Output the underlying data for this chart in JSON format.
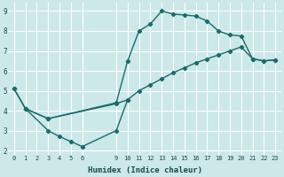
{
  "xlabel": "Humidex (Indice chaleur)",
  "bg_color": "#cce8e8",
  "grid_color": "#ffffff",
  "line_color": "#1a6b6b",
  "marker": "D",
  "markersize": 2.2,
  "linewidth": 1.0,
  "xlim": [
    -0.5,
    23.5
  ],
  "ylim": [
    1.8,
    9.4
  ],
  "xticks": [
    0,
    1,
    2,
    3,
    4,
    5,
    6,
    9,
    10,
    11,
    12,
    13,
    14,
    15,
    16,
    17,
    18,
    19,
    20,
    21,
    22,
    23
  ],
  "yticks": [
    2,
    3,
    4,
    5,
    6,
    7,
    8,
    9
  ],
  "series": [
    {
      "x": [
        0,
        1,
        3,
        9,
        10,
        11,
        12,
        13,
        14,
        15,
        16,
        17,
        18,
        19,
        20,
        21,
        22,
        23
      ],
      "y": [
        5.1,
        4.1,
        3.6,
        4.4,
        6.5,
        8.0,
        8.35,
        9.0,
        8.85,
        8.8,
        8.75,
        8.5,
        8.0,
        7.8,
        7.75,
        6.6,
        6.5,
        6.55
      ]
    },
    {
      "x": [
        0,
        1,
        3,
        9,
        10,
        11,
        12,
        13,
        14,
        15,
        16,
        17,
        18,
        19,
        20,
        21,
        22,
        23
      ],
      "y": [
        5.1,
        4.1,
        3.6,
        4.35,
        4.55,
        5.0,
        5.3,
        5.6,
        5.9,
        6.15,
        6.4,
        6.6,
        6.8,
        7.0,
        7.2,
        6.6,
        6.5,
        6.55
      ]
    },
    {
      "x": [
        1,
        3,
        4,
        5,
        6,
        9,
        10
      ],
      "y": [
        4.1,
        3.0,
        2.7,
        2.45,
        2.2,
        3.0,
        4.55
      ]
    }
  ]
}
